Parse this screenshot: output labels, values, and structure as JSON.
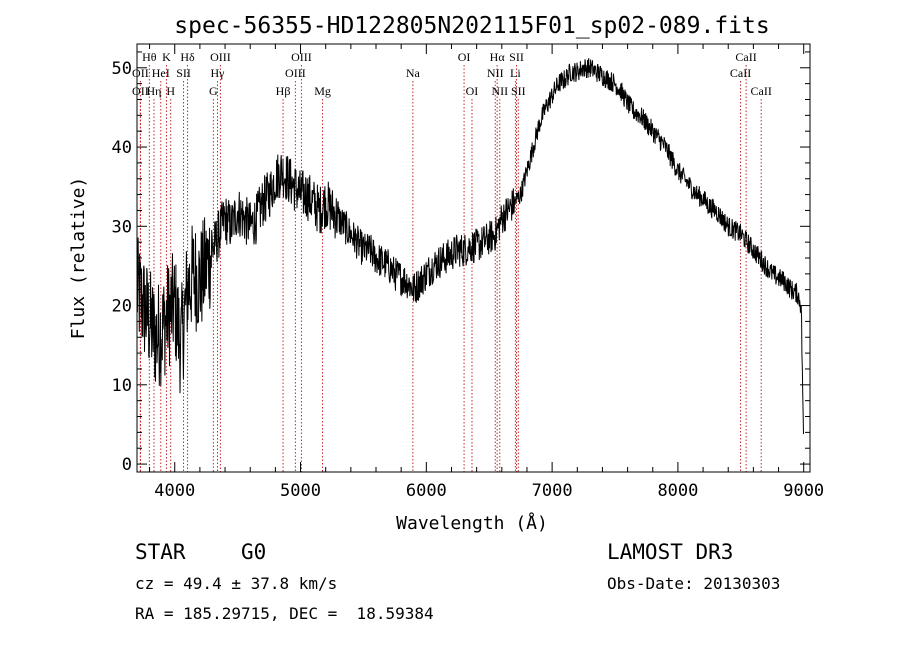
{
  "chart_data": {
    "type": "line",
    "title": "spec-56355-HD122805N202115F01_sp02-089.fits",
    "xlabel": "Wavelength (Å)",
    "ylabel": "Flux (relative)",
    "xlim": [
      3700,
      9050
    ],
    "ylim": [
      -1,
      53
    ],
    "xticks": [
      4000,
      5000,
      6000,
      7000,
      8000,
      9000
    ],
    "yticks": [
      0,
      10,
      20,
      30,
      40,
      50
    ],
    "grid": false,
    "series": [
      {
        "name": "flux",
        "x": [
          3700,
          3750,
          3800,
          3850,
          3900,
          3950,
          4000,
          4050,
          4100,
          4150,
          4200,
          4250,
          4300,
          4350,
          4400,
          4450,
          4500,
          4550,
          4600,
          4650,
          4700,
          4750,
          4800,
          4850,
          4900,
          4950,
          5000,
          5050,
          5100,
          5150,
          5200,
          5250,
          5300,
          5350,
          5400,
          5450,
          5500,
          5550,
          5600,
          5650,
          5700,
          5750,
          5800,
          5850,
          5900,
          5950,
          6000,
          6050,
          6100,
          6150,
          6200,
          6250,
          6300,
          6350,
          6400,
          6450,
          6500,
          6550,
          6600,
          6650,
          6700,
          6750,
          6800,
          6850,
          6900,
          6950,
          7000,
          7050,
          7100,
          7150,
          7200,
          7250,
          7300,
          7350,
          7400,
          7450,
          7500,
          7550,
          7600,
          7650,
          7700,
          7750,
          7800,
          7850,
          7900,
          7950,
          8000,
          8050,
          8100,
          8150,
          8200,
          8250,
          8300,
          8350,
          8400,
          8450,
          8500,
          8550,
          8600,
          8650,
          8700,
          8750,
          8800,
          8850,
          8900,
          8950,
          8980,
          9000
        ],
        "values": [
          22,
          20,
          18,
          16,
          17,
          19,
          20,
          15,
          22,
          24,
          23,
          25,
          27,
          29,
          31,
          30,
          32,
          31,
          30,
          31,
          33,
          34,
          36,
          37,
          36,
          35,
          34,
          34,
          33,
          32,
          33,
          32,
          31,
          30,
          29,
          28,
          27,
          27,
          26,
          25.5,
          25,
          24,
          23.5,
          23,
          22,
          23,
          24,
          25,
          25.5,
          26,
          26.5,
          27,
          27,
          27.5,
          27.5,
          28,
          28.5,
          29,
          31,
          32,
          33,
          34,
          37,
          40,
          43,
          45,
          46.5,
          48,
          48.5,
          49.5,
          49.5,
          50,
          50,
          49.5,
          49,
          48.5,
          48,
          47,
          45.5,
          44.5,
          44,
          43,
          42,
          41,
          40,
          38.5,
          37,
          36,
          35,
          34,
          33.5,
          32.5,
          32,
          31,
          30,
          29.5,
          29,
          28,
          27,
          26,
          25,
          24,
          23.5,
          23,
          22,
          21.5,
          20,
          2
        ]
      }
    ],
    "lines": [
      {
        "label": "Hθ",
        "x": 3798,
        "row": 1
      },
      {
        "label": "OII",
        "x": 3727,
        "row": 2
      },
      {
        "label": "OII",
        "x": 3727,
        "row": 3
      },
      {
        "label": "HeI",
        "x": 3889,
        "row": 2
      },
      {
        "label": "Hη",
        "x": 3835,
        "row": 3
      },
      {
        "label": "K",
        "x": 3934,
        "row": 1
      },
      {
        "label": "H",
        "x": 3968,
        "row": 3
      },
      {
        "label": "SII",
        "x": 4070,
        "row": 2
      },
      {
        "label": "Hδ",
        "x": 4102,
        "row": 1
      },
      {
        "label": "OIII",
        "x": 4363,
        "row": 1
      },
      {
        "label": "Hγ",
        "x": 4340,
        "row": 2
      },
      {
        "label": "G",
        "x": 4307,
        "row": 3
      },
      {
        "label": "Hβ",
        "x": 4861,
        "row": 3
      },
      {
        "label": "OIII",
        "x": 5007,
        "row": 1
      },
      {
        "label": "OIII",
        "x": 4959,
        "row": 2
      },
      {
        "label": "Mg",
        "x": 5175,
        "row": 3
      },
      {
        "label": "Na",
        "x": 5893,
        "row": 2
      },
      {
        "label": "OI",
        "x": 6300,
        "row": 1
      },
      {
        "label": "OI",
        "x": 6363,
        "row": 3
      },
      {
        "label": "Hα",
        "x": 6563,
        "row": 1
      },
      {
        "label": "NII",
        "x": 6548,
        "row": 2
      },
      {
        "label": "NII",
        "x": 6584,
        "row": 3
      },
      {
        "label": "SII",
        "x": 6717,
        "row": 1
      },
      {
        "label": "Li",
        "x": 6708,
        "row": 2
      },
      {
        "label": "SII",
        "x": 6731,
        "row": 3
      },
      {
        "label": "CaII",
        "x": 8542,
        "row": 1
      },
      {
        "label": "CaII",
        "x": 8498,
        "row": 2
      },
      {
        "label": "CaII",
        "x": 8662,
        "row": 3
      }
    ]
  },
  "info": {
    "object_class": "STAR",
    "subclass": "G0",
    "survey": "LAMOST DR3",
    "cz": "cz = 49.4 ± 37.8 km/s",
    "obs_date": "Obs-Date: 20130303",
    "coords": "RA = 185.29715, DEC =  18.59384"
  }
}
